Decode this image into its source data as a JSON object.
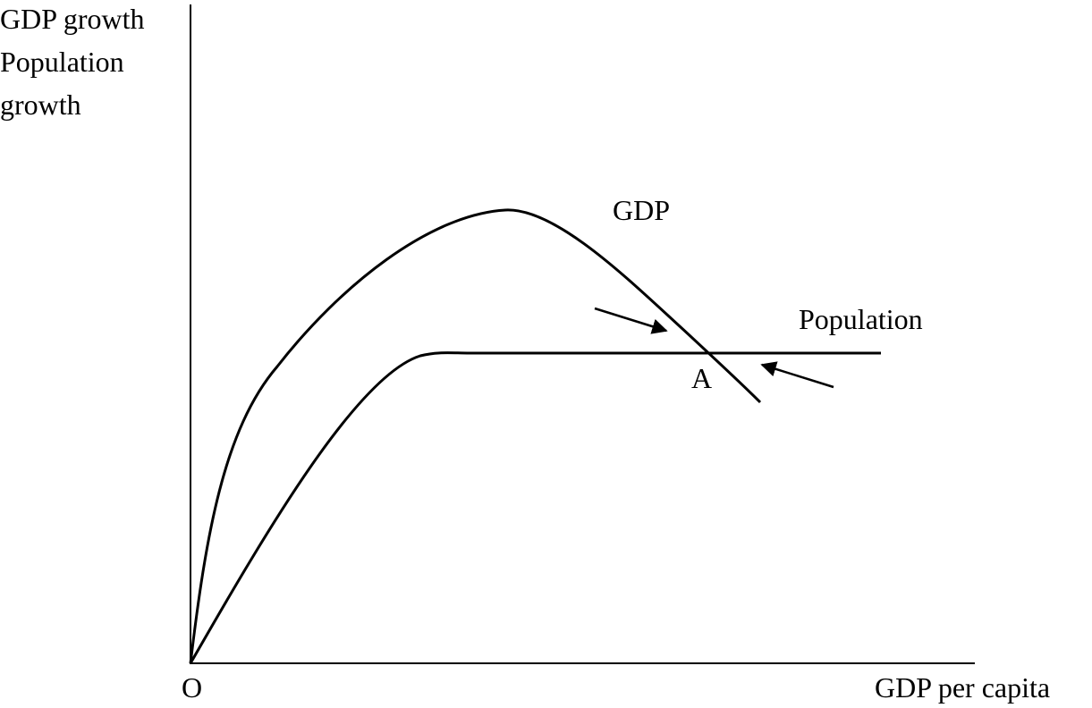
{
  "axes": {
    "y_label_lines": [
      "GDP growth",
      "Population",
      "growth"
    ],
    "x_label": "GDP per capita",
    "origin": "O"
  },
  "curves": [
    {
      "label": "GDP"
    },
    {
      "label": "Population"
    }
  ],
  "points": [
    {
      "label": "A"
    }
  ]
}
